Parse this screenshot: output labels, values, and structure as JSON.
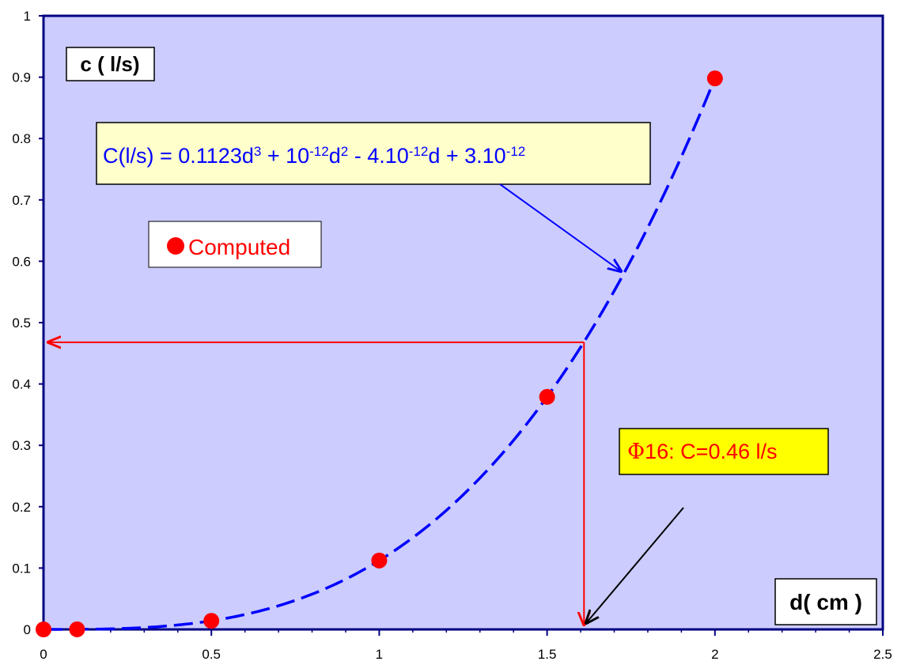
{
  "chart_data": {
    "type": "scatter",
    "title": "",
    "xlabel": "d( cm )",
    "ylabel": "c ( l/s)",
    "xlim": [
      0,
      2.5
    ],
    "ylim": [
      0,
      1
    ],
    "x_ticks": [
      "0",
      "0.5",
      "1",
      "1.5",
      "2",
      "2.5"
    ],
    "y_ticks": [
      "0",
      "0.1",
      "0.2",
      "0.3",
      "0.4",
      "0.5",
      "0.6",
      "0.7",
      "0.8",
      "0.9",
      "1"
    ],
    "grid": false,
    "plot_background": "#ccccff",
    "series": [
      {
        "name": "Computed",
        "kind": "points",
        "color": "#ff0000",
        "x": [
          0,
          0.1,
          0.5,
          1,
          1.5,
          2
        ],
        "y": [
          0,
          0.0001,
          0.014,
          0.1123,
          0.379,
          0.898
        ]
      },
      {
        "kind": "trendline",
        "color": "#0000ff",
        "style": "dashed",
        "coefficients": {
          "a3": 0.1123,
          "a2": 1e-12,
          "a1": -4e-12,
          "a0": 3e-12
        },
        "x_range": [
          0,
          2
        ]
      }
    ],
    "equation": {
      "base": "C(l/s) = 0.1123d",
      "exp1": "3",
      "part2": " + 10",
      "exp2": "-12",
      "part3": "d",
      "exp3": "2",
      "part4": " - 4.10",
      "exp4": "-12",
      "part5": "d + 3.10",
      "exp5": "-12"
    },
    "annotation": {
      "phi": "Φ",
      "text": "16: C=0.46 l/s",
      "d": 1.61,
      "c": 0.468,
      "color": "#ff0000"
    },
    "colors": {
      "axis": "#000080",
      "equation_box": "#ffffcc",
      "annotation_box": "#ffff00",
      "equation_text": "#0000ff",
      "arrow_blue": "#0000ff",
      "arrow_red": "#ff0000",
      "arrow_black": "#000000"
    }
  }
}
